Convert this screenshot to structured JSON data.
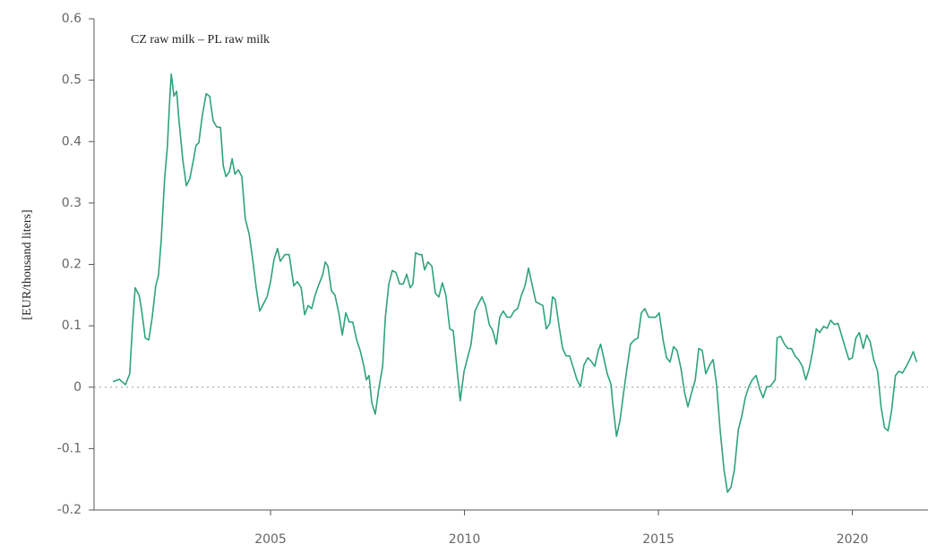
{
  "chart_data": {
    "type": "line",
    "title": "CZ raw milk – PL raw milk",
    "y_label": "[EUR/thousand liters]",
    "color": "#2ea37a",
    "reference_line": 0,
    "xlim": [
      2000.45,
      2021.95
    ],
    "xticks": [
      2005,
      2010,
      2015,
      2020
    ],
    "ylim": [
      -0.2,
      0.6
    ],
    "yticks": [
      -0.2,
      -0.1,
      0,
      0.1,
      0.2,
      0.3,
      0.4,
      0.5,
      0.6
    ],
    "x": [
      2000.94,
      2001.1,
      2001.26,
      2001.37,
      2001.44,
      2001.51,
      2001.61,
      2001.67,
      2001.77,
      2001.86,
      2001.95,
      2002.04,
      2002.11,
      2002.18,
      2002.27,
      2002.34,
      2002.39,
      2002.44,
      2002.51,
      2002.58,
      2002.64,
      2002.74,
      2002.83,
      2002.92,
      2003.01,
      2003.08,
      2003.15,
      2003.24,
      2003.34,
      2003.43,
      2003.52,
      2003.61,
      2003.71,
      2003.78,
      2003.85,
      2003.94,
      2004.01,
      2004.08,
      2004.17,
      2004.26,
      2004.35,
      2004.45,
      2004.54,
      2004.63,
      2004.72,
      2004.82,
      2004.91,
      2005.0,
      2005.09,
      2005.18,
      2005.25,
      2005.37,
      2005.48,
      2005.6,
      2005.69,
      2005.79,
      2005.88,
      2005.97,
      2006.06,
      2006.15,
      2006.25,
      2006.34,
      2006.41,
      2006.48,
      2006.57,
      2006.66,
      2006.76,
      2006.85,
      2006.94,
      2007.03,
      2007.12,
      2007.22,
      2007.31,
      2007.4,
      2007.47,
      2007.54,
      2007.61,
      2007.7,
      2007.79,
      2007.89,
      2007.96,
      2008.05,
      2008.14,
      2008.23,
      2008.33,
      2008.42,
      2008.51,
      2008.6,
      2008.67,
      2008.74,
      2008.83,
      2008.9,
      2008.97,
      2009.06,
      2009.16,
      2009.25,
      2009.34,
      2009.43,
      2009.52,
      2009.62,
      2009.71,
      2009.8,
      2009.89,
      2009.99,
      2010.08,
      2010.17,
      2010.27,
      2010.36,
      2010.45,
      2010.54,
      2010.64,
      2010.73,
      2010.82,
      2010.91,
      2011.0,
      2011.1,
      2011.19,
      2011.28,
      2011.37,
      2011.47,
      2011.56,
      2011.65,
      2011.74,
      2011.84,
      2011.93,
      2012.02,
      2012.11,
      2012.2,
      2012.27,
      2012.34,
      2012.44,
      2012.53,
      2012.62,
      2012.71,
      2012.81,
      2012.9,
      2012.99,
      2013.08,
      2013.18,
      2013.27,
      2013.36,
      2013.45,
      2013.51,
      2013.59,
      2013.68,
      2013.78,
      2013.82,
      2013.92,
      2014.01,
      2014.1,
      2014.19,
      2014.28,
      2014.38,
      2014.47,
      2014.56,
      2014.65,
      2014.75,
      2014.84,
      2014.93,
      2015.02,
      2015.12,
      2015.21,
      2015.3,
      2015.39,
      2015.48,
      2015.58,
      2015.67,
      2015.76,
      2015.85,
      2015.95,
      2016.04,
      2016.13,
      2016.22,
      2016.32,
      2016.41,
      2016.5,
      2016.59,
      2016.69,
      2016.78,
      2016.87,
      2016.96,
      2017.06,
      2017.15,
      2017.24,
      2017.33,
      2017.42,
      2017.52,
      2017.61,
      2017.7,
      2017.79,
      2017.88,
      2018.01,
      2018.06,
      2018.15,
      2018.25,
      2018.34,
      2018.43,
      2018.52,
      2018.61,
      2018.71,
      2018.8,
      2018.89,
      2018.98,
      2019.07,
      2019.16,
      2019.26,
      2019.35,
      2019.44,
      2019.54,
      2019.63,
      2019.72,
      2019.81,
      2019.91,
      2020.0,
      2020.09,
      2020.18,
      2020.28,
      2020.37,
      2020.46,
      2020.55,
      2020.65,
      2020.74,
      2020.83,
      2020.92,
      2021.01,
      2021.11,
      2021.2,
      2021.29,
      2021.39,
      2021.48,
      2021.57,
      2021.66
    ],
    "values": [
      0.009,
      0.013,
      0.004,
      0.022,
      0.099,
      0.162,
      0.15,
      0.128,
      0.08,
      0.077,
      0.114,
      0.165,
      0.182,
      0.238,
      0.34,
      0.391,
      0.456,
      0.51,
      0.474,
      0.482,
      0.434,
      0.369,
      0.328,
      0.34,
      0.369,
      0.394,
      0.398,
      0.442,
      0.478,
      0.474,
      0.434,
      0.424,
      0.423,
      0.361,
      0.343,
      0.351,
      0.372,
      0.347,
      0.354,
      0.343,
      0.274,
      0.249,
      0.208,
      0.162,
      0.124,
      0.136,
      0.147,
      0.172,
      0.208,
      0.226,
      0.205,
      0.216,
      0.216,
      0.165,
      0.172,
      0.162,
      0.118,
      0.133,
      0.128,
      0.15,
      0.168,
      0.182,
      0.204,
      0.197,
      0.157,
      0.15,
      0.121,
      0.085,
      0.121,
      0.106,
      0.106,
      0.077,
      0.06,
      0.036,
      0.012,
      0.019,
      -0.025,
      -0.044,
      -0.003,
      0.034,
      0.114,
      0.168,
      0.19,
      0.187,
      0.168,
      0.168,
      0.184,
      0.162,
      0.168,
      0.219,
      0.216,
      0.216,
      0.191,
      0.204,
      0.197,
      0.153,
      0.147,
      0.17,
      0.15,
      0.095,
      0.092,
      0.034,
      -0.022,
      0.026,
      0.048,
      0.07,
      0.124,
      0.136,
      0.147,
      0.133,
      0.102,
      0.092,
      0.07,
      0.114,
      0.124,
      0.114,
      0.114,
      0.124,
      0.128,
      0.15,
      0.165,
      0.194,
      0.168,
      0.139,
      0.136,
      0.133,
      0.095,
      0.104,
      0.147,
      0.143,
      0.099,
      0.063,
      0.051,
      0.051,
      0.031,
      0.012,
      0.001,
      0.036,
      0.048,
      0.042,
      0.034,
      0.06,
      0.07,
      0.048,
      0.022,
      0.004,
      -0.025,
      -0.08,
      -0.054,
      -0.01,
      0.031,
      0.07,
      0.077,
      0.08,
      0.121,
      0.128,
      0.114,
      0.114,
      0.114,
      0.121,
      0.077,
      0.048,
      0.041,
      0.066,
      0.06,
      0.031,
      -0.007,
      -0.032,
      -0.01,
      0.012,
      0.063,
      0.06,
      0.022,
      0.036,
      0.045,
      0.004,
      -0.069,
      -0.134,
      -0.171,
      -0.163,
      -0.134,
      -0.069,
      -0.047,
      -0.017,
      0.001,
      0.012,
      0.019,
      -0.003,
      -0.017,
      0.001,
      0.001,
      0.012,
      0.08,
      0.083,
      0.07,
      0.063,
      0.063,
      0.051,
      0.045,
      0.034,
      0.012,
      0.031,
      0.06,
      0.095,
      0.089,
      0.099,
      0.096,
      0.109,
      0.102,
      0.104,
      0.085,
      0.066,
      0.045,
      0.048,
      0.08,
      0.089,
      0.063,
      0.085,
      0.074,
      0.045,
      0.026,
      -0.032,
      -0.066,
      -0.071,
      -0.039,
      0.019,
      0.026,
      0.023,
      0.034,
      0.045,
      0.058,
      0.041
    ]
  }
}
